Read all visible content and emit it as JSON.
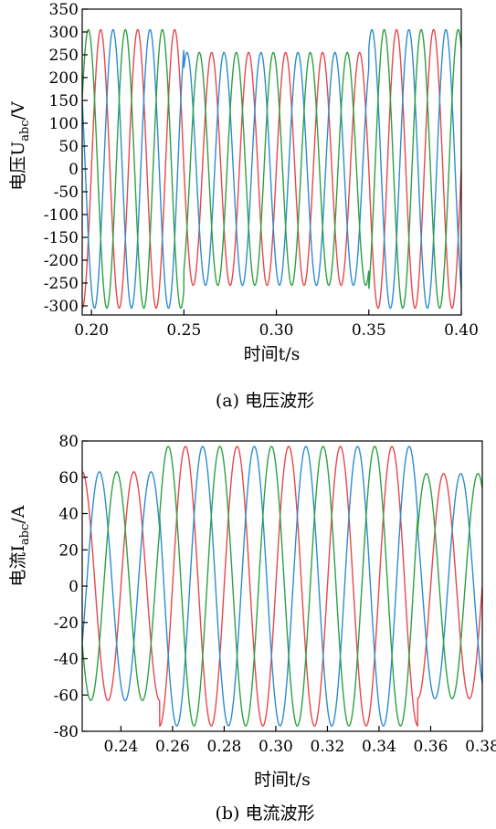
{
  "chart_data": [
    {
      "type": "line",
      "caption": "(a) 电压波形",
      "xlabel": "时间t/s",
      "ylabel": "电压U",
      "ylabel_sub": "abc",
      "ylabel_unit": "/V",
      "xlim": [
        0.195,
        0.4
      ],
      "ylim": [
        -320,
        350
      ],
      "xticks": [
        0.2,
        0.25,
        0.3,
        0.35,
        0.4
      ],
      "xtick_labels": [
        "0.20",
        "0.25",
        "0.30",
        "0.35",
        "0.40"
      ],
      "yticks": [
        -300,
        -250,
        -200,
        -150,
        -100,
        -50,
        0,
        50,
        100,
        150,
        200,
        250,
        300,
        350
      ],
      "ytick_labels": [
        "-300",
        "-250",
        "-200",
        "-150",
        "-100",
        "-50",
        "0",
        "50",
        "100",
        "150",
        "200",
        "250",
        "300",
        "350"
      ],
      "frequency_hz": 50,
      "series": [
        {
          "color": "#e8474c",
          "phase_deg": 0,
          "amplitude_segments": [
            {
              "t0": 0.195,
              "t1": 0.25,
              "amp": 305
            },
            {
              "t0": 0.25,
              "t1": 0.35,
              "amp": 255
            },
            {
              "t0": 0.35,
              "t1": 0.4,
              "amp": 305
            }
          ]
        },
        {
          "color": "#2e8ccf",
          "phase_deg": -120,
          "amplitude_segments": [
            {
              "t0": 0.195,
              "t1": 0.25,
              "amp": 305
            },
            {
              "t0": 0.25,
              "t1": 0.35,
              "amp": 255
            },
            {
              "t0": 0.35,
              "t1": 0.4,
              "amp": 305
            }
          ]
        },
        {
          "color": "#2ea043",
          "phase_deg": 120,
          "amplitude_segments": [
            {
              "t0": 0.195,
              "t1": 0.25,
              "amp": 305
            },
            {
              "t0": 0.25,
              "t1": 0.35,
              "amp": 255
            },
            {
              "t0": 0.35,
              "t1": 0.4,
              "amp": 305
            }
          ]
        }
      ]
    },
    {
      "type": "line",
      "caption": "(b) 电流波形",
      "xlabel": "时间t/s",
      "ylabel": "电流I",
      "ylabel_sub": "abc",
      "ylabel_unit": "/A",
      "xlim": [
        0.225,
        0.38
      ],
      "ylim": [
        -80,
        80
      ],
      "xticks": [
        0.24,
        0.26,
        0.28,
        0.3,
        0.32,
        0.34,
        0.36,
        0.38
      ],
      "xtick_labels": [
        "0.24",
        "0.26",
        "0.28",
        "0.30",
        "0.32",
        "0.34",
        "0.36",
        "0.38"
      ],
      "yticks": [
        -80,
        -60,
        -40,
        -20,
        0,
        20,
        40,
        60,
        80
      ],
      "ytick_labels": [
        "-80",
        "-60",
        "-40",
        "-20",
        "0",
        "20",
        "40",
        "60",
        "80"
      ],
      "frequency_hz": 50,
      "series": [
        {
          "color": "#e8474c",
          "phase_deg": 0,
          "amplitude_segments": [
            {
              "t0": 0.225,
              "t1": 0.255,
              "amp": 63
            },
            {
              "t0": 0.255,
              "t1": 0.355,
              "amp": 77
            },
            {
              "t0": 0.355,
              "t1": 0.38,
              "amp": 62
            }
          ]
        },
        {
          "color": "#2e8ccf",
          "phase_deg": -120,
          "amplitude_segments": [
            {
              "t0": 0.225,
              "t1": 0.255,
              "amp": 63
            },
            {
              "t0": 0.255,
              "t1": 0.355,
              "amp": 77
            },
            {
              "t0": 0.355,
              "t1": 0.38,
              "amp": 62
            }
          ]
        },
        {
          "color": "#2ea043",
          "phase_deg": 120,
          "amplitude_segments": [
            {
              "t0": 0.225,
              "t1": 0.255,
              "amp": 63
            },
            {
              "t0": 0.255,
              "t1": 0.355,
              "amp": 77
            },
            {
              "t0": 0.355,
              "t1": 0.38,
              "amp": 62
            }
          ]
        }
      ]
    }
  ]
}
